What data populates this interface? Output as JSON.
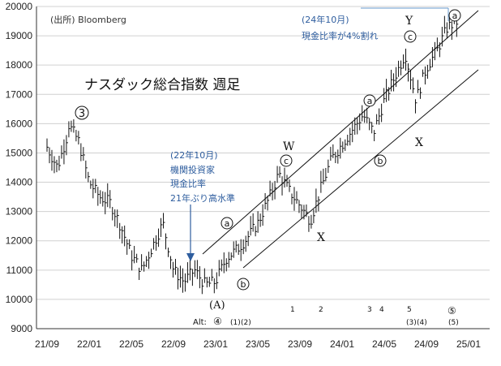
{
  "source_label": "(出所) Bloomberg",
  "chart_data": {
    "type": "line",
    "title": "ナスダック総合指数 週足",
    "style": "weekly high-low bars with close ticks",
    "xlabel": "",
    "ylabel": "",
    "ylim": [
      9000,
      20000
    ],
    "yticks": [
      9000,
      10000,
      11000,
      12000,
      13000,
      14000,
      15000,
      16000,
      17000,
      18000,
      19000,
      20000
    ],
    "xticks": [
      "21/09",
      "22/01",
      "22/05",
      "22/09",
      "23/01",
      "23/05",
      "23/09",
      "24/01",
      "24/05",
      "24/09",
      "25/01"
    ],
    "grid": "horizontal",
    "series": [
      {
        "x": [
          "21/09",
          "21/10",
          "21/11",
          "21/11",
          "21/12",
          "22/01",
          "22/02",
          "22/03",
          "22/04",
          "22/05",
          "22/06",
          "22/07",
          "22/08",
          "22/09",
          "22/10",
          "22/11",
          "22/12",
          "23/01",
          "23/02",
          "23/03",
          "23/04",
          "23/05",
          "23/06",
          "23/07",
          "23/08",
          "23/09",
          "23/10",
          "23/11",
          "23/12",
          "24/01",
          "24/02",
          "24/03",
          "24/04",
          "24/05",
          "24/06",
          "24/07",
          "24/08",
          "24/09",
          "24/10",
          "24/11",
          "24/12"
        ],
        "values": [
          15200,
          14500,
          15700,
          16000,
          15400,
          14000,
          13500,
          13300,
          12500,
          11500,
          11000,
          11800,
          12600,
          11000,
          10600,
          11000,
          10500,
          10600,
          11400,
          11700,
          12100,
          12600,
          13400,
          14300,
          13700,
          13200,
          12700,
          13800,
          14800,
          15300,
          15800,
          16300,
          15700,
          16800,
          17600,
          18400,
          16800,
          17900,
          18500,
          19300,
          19500
        ]
      }
    ],
    "annotations": {
      "peak_label": "③",
      "note_2022": [
        "(22年10月)",
        "機関投資家",
        "現金比率",
        "21年ぶり高水準"
      ],
      "note_2024": [
        "(24年10月)",
        "現金比率が4%割れ"
      ],
      "wave_letters": [
        "a",
        "b",
        "c",
        "a",
        "b",
        "c",
        "a"
      ],
      "wave_marks": [
        "W",
        "X",
        "Y",
        "X"
      ],
      "base_label": "(A)",
      "alt_label": "Alt:",
      "alt_circled": "④",
      "count_marks": [
        "(1)",
        "(2)",
        "1",
        "2",
        "3",
        "4",
        "5",
        "(3)",
        "(4)",
        "⑤",
        "(5)"
      ]
    }
  }
}
